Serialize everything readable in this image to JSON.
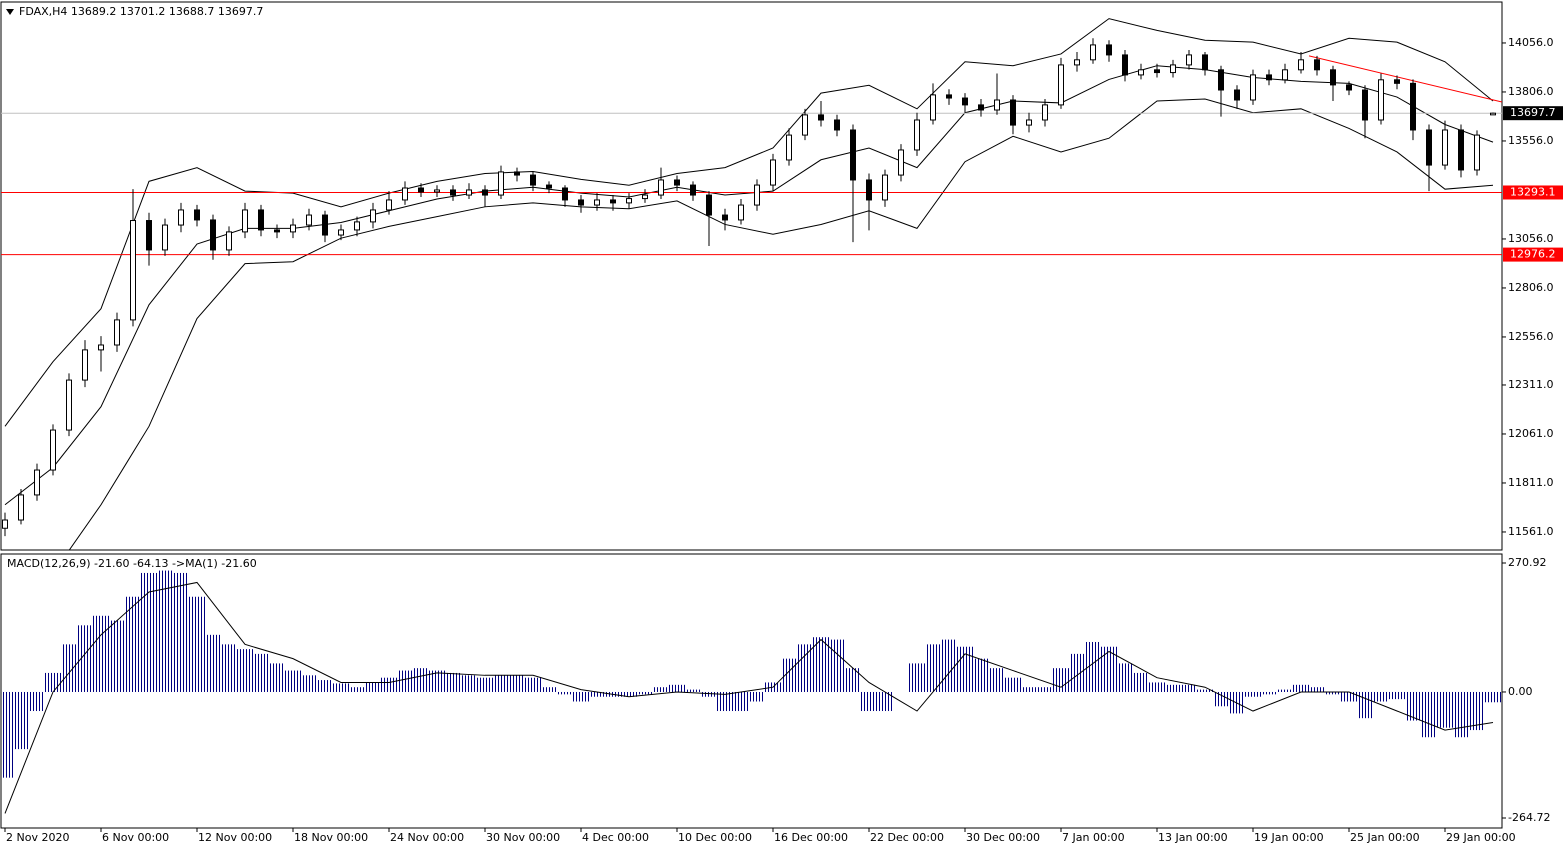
{
  "chart_data": [
    {
      "type": "candlestick",
      "header": "FDAX,H4  13689.2 13701.2 13688.7 13697.7",
      "xlim": [
        -0.25,
        93.5625
      ],
      "ylim": [
        11469,
        14265
      ],
      "yticks": [
        {
          "value": 14056,
          "label": "14056.0"
        },
        {
          "value": 13806,
          "label": "13806.0"
        },
        {
          "value": 13556,
          "label": "13556.0"
        },
        {
          "value": 13056,
          "label": "13056.0"
        },
        {
          "value": 12806,
          "label": "12806.0"
        },
        {
          "value": 12556,
          "label": "12556.0"
        },
        {
          "value": 12311,
          "label": "12311.0"
        },
        {
          "value": 12061,
          "label": "12061.0"
        },
        {
          "value": 11811,
          "label": "11811.0"
        },
        {
          "value": 11561,
          "label": "11561.0"
        }
      ],
      "color": "#000000",
      "ohlc": [
        [
          11580,
          11660,
          11540,
          11622
        ],
        [
          11622,
          11780,
          11600,
          11750
        ],
        [
          11750,
          11910,
          11720,
          11877
        ],
        [
          11877,
          12110,
          11850,
          12081
        ],
        [
          12081,
          12370,
          12050,
          12336
        ],
        [
          12336,
          12540,
          12300,
          12490
        ],
        [
          12490,
          12560,
          12380,
          12515
        ],
        [
          12515,
          12680,
          12480,
          12643
        ],
        [
          12643,
          13310,
          12610,
          13150
        ],
        [
          13150,
          13190,
          12920,
          13000
        ],
        [
          13000,
          13160,
          12970,
          13127
        ],
        [
          13127,
          13240,
          13090,
          13204
        ],
        [
          13204,
          13230,
          13120,
          13153
        ],
        [
          13153,
          13180,
          12950,
          13000
        ],
        [
          13000,
          13120,
          12970,
          13092
        ],
        [
          13092,
          13240,
          13060,
          13204
        ],
        [
          13204,
          13230,
          13070,
          13102
        ],
        [
          13102,
          13130,
          13060,
          13092
        ],
        [
          13092,
          13160,
          13060,
          13127
        ],
        [
          13127,
          13210,
          13100,
          13178
        ],
        [
          13178,
          13200,
          13040,
          13076
        ],
        [
          13076,
          13130,
          13050,
          13102
        ],
        [
          13102,
          13170,
          13070,
          13143
        ],
        [
          13143,
          13240,
          13110,
          13204
        ],
        [
          13204,
          13300,
          13180,
          13255
        ],
        [
          13255,
          13350,
          13230,
          13316
        ],
        [
          13316,
          13340,
          13270,
          13296
        ],
        [
          13296,
          13330,
          13270,
          13306
        ],
        [
          13306,
          13330,
          13250,
          13280
        ],
        [
          13280,
          13340,
          13260,
          13306
        ],
        [
          13306,
          13330,
          13220,
          13280
        ],
        [
          13280,
          13430,
          13260,
          13398
        ],
        [
          13398,
          13420,
          13350,
          13382
        ],
        [
          13382,
          13400,
          13300,
          13331
        ],
        [
          13331,
          13350,
          13290,
          13316
        ],
        [
          13316,
          13330,
          13220,
          13255
        ],
        [
          13255,
          13280,
          13190,
          13229
        ],
        [
          13229,
          13290,
          13200,
          13255
        ],
        [
          13255,
          13280,
          13200,
          13240
        ],
        [
          13240,
          13290,
          13210,
          13262
        ],
        [
          13262,
          13310,
          13240,
          13280
        ],
        [
          13280,
          13420,
          13260,
          13357
        ],
        [
          13357,
          13380,
          13300,
          13331
        ],
        [
          13331,
          13350,
          13250,
          13280
        ],
        [
          13280,
          13300,
          13020,
          13178
        ],
        [
          13178,
          13210,
          13100,
          13153
        ],
        [
          13153,
          13260,
          13130,
          13229
        ],
        [
          13229,
          13360,
          13200,
          13331
        ],
        [
          13331,
          13490,
          13300,
          13459
        ],
        [
          13459,
          13620,
          13430,
          13586
        ],
        [
          13586,
          13720,
          13560,
          13689
        ],
        [
          13689,
          13760,
          13630,
          13663
        ],
        [
          13663,
          13690,
          13580,
          13612
        ],
        [
          13612,
          13640,
          13040,
          13357
        ],
        [
          13357,
          13390,
          13100,
          13255
        ],
        [
          13255,
          13410,
          13220,
          13382
        ],
        [
          13382,
          13540,
          13350,
          13510
        ],
        [
          13510,
          13700,
          13480,
          13663
        ],
        [
          13663,
          13850,
          13640,
          13791
        ],
        [
          13791,
          13820,
          13740,
          13775
        ],
        [
          13775,
          13800,
          13700,
          13740
        ],
        [
          13740,
          13770,
          13680,
          13714
        ],
        [
          13714,
          13900,
          13690,
          13765
        ],
        [
          13765,
          13790,
          13590,
          13637
        ],
        [
          13637,
          13700,
          13600,
          13663
        ],
        [
          13663,
          13770,
          13630,
          13740
        ],
        [
          13740,
          13980,
          13720,
          13944
        ],
        [
          13944,
          14010,
          13910,
          13970
        ],
        [
          13970,
          14080,
          13950,
          14046
        ],
        [
          14046,
          14070,
          13960,
          13995
        ],
        [
          13995,
          14020,
          13860,
          13893
        ],
        [
          13893,
          13950,
          13870,
          13919
        ],
        [
          13919,
          13950,
          13880,
          13905
        ],
        [
          13905,
          13970,
          13880,
          13944
        ],
        [
          13944,
          14020,
          13920,
          13995
        ],
        [
          13995,
          14010,
          13890,
          13919
        ],
        [
          13919,
          13940,
          13680,
          13816
        ],
        [
          13816,
          13840,
          13720,
          13765
        ],
        [
          13765,
          13920,
          13740,
          13893
        ],
        [
          13893,
          13920,
          13840,
          13868
        ],
        [
          13868,
          13950,
          13850,
          13919
        ],
        [
          13919,
          14010,
          13900,
          13970
        ],
        [
          13970,
          13990,
          13890,
          13919
        ],
        [
          13919,
          13940,
          13760,
          13842
        ],
        [
          13842,
          13860,
          13790,
          13816
        ],
        [
          13816,
          13840,
          13570,
          13663
        ],
        [
          13663,
          13900,
          13640,
          13868
        ],
        [
          13868,
          13890,
          13820,
          13850
        ],
        [
          13850,
          13870,
          13560,
          13612
        ],
        [
          13612,
          13640,
          13300,
          13433
        ],
        [
          13433,
          13660,
          13410,
          13612
        ],
        [
          13612,
          13640,
          13370,
          13408
        ],
        [
          13408,
          13610,
          13380,
          13586
        ],
        [
          13689.2,
          13701.2,
          13688.7,
          13697.7
        ]
      ],
      "bands": {
        "x": [
          0,
          3,
          6,
          9,
          12,
          15,
          18,
          21,
          24,
          27,
          30,
          33,
          36,
          39,
          42,
          45,
          48,
          51,
          54,
          57,
          60,
          63,
          66,
          69,
          72,
          75,
          78,
          81,
          84,
          87,
          90,
          93
        ],
        "upper": [
          12100,
          12430,
          12700,
          13350,
          13420,
          13300,
          13290,
          13220,
          13290,
          13350,
          13390,
          13400,
          13360,
          13330,
          13390,
          13420,
          13520,
          13800,
          13840,
          13720,
          13960,
          13940,
          14000,
          14180,
          14120,
          14070,
          14060,
          14000,
          14080,
          14060,
          13960,
          13760
        ],
        "middle": [
          11700,
          11890,
          12200,
          12720,
          13030,
          13110,
          13110,
          13140,
          13200,
          13260,
          13300,
          13320,
          13290,
          13270,
          13320,
          13280,
          13300,
          13460,
          13520,
          13420,
          13700,
          13760,
          13750,
          13870,
          13940,
          13920,
          13880,
          13860,
          13850,
          13780,
          13640,
          13550
        ],
        "lower": [
          11300,
          11350,
          11700,
          12100,
          12650,
          12930,
          12940,
          13060,
          13120,
          13170,
          13220,
          13240,
          13220,
          13210,
          13250,
          13130,
          13080,
          13130,
          13200,
          13110,
          13450,
          13580,
          13500,
          13570,
          13760,
          13770,
          13700,
          13720,
          13620,
          13500,
          13310,
          13330
        ]
      },
      "levels": [
        {
          "value": 13293.1,
          "color": "#ff0000"
        },
        {
          "value": 12976.2,
          "color": "#ff0000"
        }
      ],
      "price_line_color": "#c0c0c0",
      "trendline": {
        "x": [
          81.5,
          93.56
        ],
        "y": [
          13990,
          13755
        ],
        "color": "#ff0000"
      }
    },
    {
      "type": "macd",
      "header": "MACD(12,26,9) -21.60 -64.13  ->MA(1) -21.60",
      "xlim": [
        -0.25,
        93.5625
      ],
      "ylim": [
        -285.7,
        289.8
      ],
      "yticks": [
        270.92,
        {
          "value": 0,
          "label": "0.00"
        },
        -264.72
      ],
      "xticks": [
        {
          "value": 0,
          "label": "2 Nov 2020"
        },
        {
          "value": 6,
          "label": "6 Nov 00:00"
        },
        {
          "value": 12,
          "label": "12 Nov 00:00"
        },
        {
          "value": 18,
          "label": "18 Nov 00:00"
        },
        {
          "value": 24,
          "label": "24 Nov 00:00"
        },
        {
          "value": 30,
          "label": "30 Nov 00:00"
        },
        {
          "value": 36,
          "label": "4 Dec 00:00"
        },
        {
          "value": 42,
          "label": "10 Dec 00:00"
        },
        {
          "value": 48,
          "label": "16 Dec 00:00"
        },
        {
          "value": 54,
          "label": "22 Dec 00:00"
        },
        {
          "value": 60,
          "label": "30 Dec 00:00"
        },
        {
          "value": 66,
          "label": "7 Jan 00:00"
        },
        {
          "value": 72,
          "label": "13 Jan 00:00"
        },
        {
          "value": 78,
          "label": "19 Jan 00:00"
        },
        {
          "value": 84,
          "label": "25 Jan 00:00"
        },
        {
          "value": 90,
          "label": "29 Jan 00:00"
        }
      ],
      "color": "#000080",
      "histogram": [
        -180,
        -120,
        -40,
        40,
        100,
        140,
        160,
        150,
        200,
        250,
        255,
        250,
        200,
        120,
        100,
        90,
        80,
        60,
        45,
        35,
        25,
        18,
        10,
        20,
        30,
        45,
        50,
        45,
        40,
        35,
        30,
        35,
        35,
        30,
        10,
        -5,
        -20,
        -10,
        -10,
        -10,
        -5,
        10,
        15,
        5,
        -10,
        -40,
        -40,
        -20,
        20,
        70,
        100,
        115,
        110,
        50,
        -40,
        -40,
        0,
        60,
        100,
        110,
        95,
        70,
        50,
        30,
        10,
        10,
        50,
        80,
        105,
        95,
        60,
        40,
        20,
        15,
        15,
        5,
        -30,
        -45,
        -10,
        -5,
        5,
        15,
        10,
        -5,
        -20,
        -55,
        -20,
        -15,
        -60,
        -95,
        -75,
        -95,
        -80,
        -21.6
      ],
      "signal": {
        "x": [
          0,
          3,
          6,
          9,
          12,
          15,
          18,
          21,
          24,
          27,
          30,
          33,
          36,
          39,
          42,
          45,
          48,
          51,
          54,
          57,
          60,
          63,
          66,
          69,
          72,
          75,
          78,
          81,
          84,
          87,
          90,
          93
        ],
        "values": [
          -255,
          0,
          120,
          210,
          230,
          100,
          70,
          20,
          20,
          40,
          35,
          35,
          5,
          -10,
          0,
          -5,
          10,
          110,
          20,
          -40,
          80,
          45,
          10,
          85,
          30,
          10,
          -40,
          0,
          0,
          -40,
          -80,
          -64.13
        ],
        "color": "#000000"
      }
    }
  ]
}
